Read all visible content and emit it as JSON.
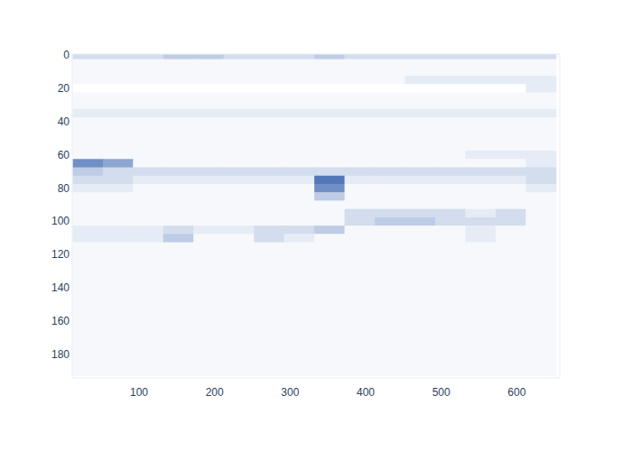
{
  "chart_data": {
    "type": "heatmap",
    "xlim": [
      11.5,
      657
    ],
    "ylim": [
      194,
      -0.5
    ],
    "xticks": [
      100,
      200,
      300,
      400,
      500,
      600
    ],
    "yticks": [
      0,
      20,
      40,
      60,
      80,
      100,
      120,
      140,
      160,
      180
    ],
    "zlim": [
      0,
      10
    ],
    "x": [
      32,
      72,
      112,
      152,
      192,
      232,
      272,
      312,
      352,
      392,
      432,
      472,
      512,
      552,
      592,
      632
    ],
    "y": [
      0,
      5,
      10,
      15,
      20,
      25,
      30,
      35,
      40,
      45,
      50,
      55,
      60,
      65,
      70,
      75,
      80,
      85,
      90,
      95,
      100,
      105,
      110,
      115,
      120,
      125,
      130,
      135,
      140,
      145,
      150,
      155,
      160,
      165,
      170,
      175,
      180,
      185,
      190
    ],
    "z": [
      [
        3,
        3,
        3,
        4,
        4,
        3,
        3,
        3,
        4,
        3,
        3,
        3,
        3,
        3,
        3,
        3
      ],
      [
        1,
        1,
        1,
        1,
        1,
        1,
        1,
        1,
        1,
        1,
        1,
        1,
        1,
        1,
        1,
        1
      ],
      [
        1,
        1,
        1,
        1,
        1,
        1,
        1,
        1,
        1,
        1,
        1,
        1,
        1,
        1,
        1,
        1
      ],
      [
        1,
        1,
        1,
        1,
        1,
        1,
        1,
        1,
        1,
        1,
        1,
        2,
        2,
        2,
        2,
        2
      ],
      [
        0,
        0,
        0,
        0,
        0,
        0,
        0,
        0,
        0,
        0,
        0,
        0,
        0,
        0,
        0,
        2
      ],
      [
        1,
        1,
        1,
        1,
        1,
        1,
        1,
        1,
        1,
        1,
        1,
        1,
        1,
        1,
        1,
        1
      ],
      [
        1,
        1,
        1,
        1,
        1,
        1,
        1,
        1,
        1,
        1,
        1,
        1,
        1,
        1,
        1,
        1
      ],
      [
        2,
        2,
        2,
        2,
        2,
        2,
        2,
        2,
        2,
        2,
        2,
        2,
        2,
        2,
        2,
        2
      ],
      [
        1,
        1,
        1,
        1,
        1,
        1,
        1,
        1,
        1,
        1,
        1,
        1,
        1,
        1,
        1,
        1
      ],
      [
        1,
        1,
        1,
        1,
        1,
        1,
        1,
        1,
        1,
        1,
        1,
        1,
        1,
        1,
        1,
        1
      ],
      [
        1,
        1,
        1,
        1,
        1,
        1,
        1,
        1,
        1,
        1,
        1,
        1,
        1,
        1,
        1,
        1
      ],
      [
        1,
        1,
        1,
        1,
        1,
        1,
        1,
        1,
        1,
        1,
        1,
        1,
        1,
        1,
        1,
        1
      ],
      [
        1,
        1,
        1,
        1,
        1,
        1,
        1,
        1,
        1,
        1,
        1,
        1,
        1,
        2,
        2,
        2
      ],
      [
        7,
        6,
        1,
        1,
        1,
        1,
        1,
        1,
        1,
        1,
        1,
        1,
        1,
        1,
        1,
        2
      ],
      [
        4,
        3,
        3,
        3,
        3,
        3,
        3,
        3,
        3,
        3,
        3,
        3,
        3,
        3,
        3,
        3
      ],
      [
        3,
        3,
        2,
        2,
        2,
        2,
        2,
        2,
        8,
        2,
        2,
        2,
        2,
        2,
        2,
        3
      ],
      [
        2,
        2,
        1,
        1,
        1,
        1,
        1,
        1,
        7,
        1,
        1,
        1,
        1,
        1,
        1,
        2
      ],
      [
        1,
        1,
        1,
        1,
        1,
        1,
        1,
        1,
        4,
        1,
        1,
        1,
        1,
        1,
        1,
        1
      ],
      [
        1,
        1,
        1,
        1,
        1,
        1,
        1,
        1,
        1,
        1,
        1,
        1,
        1,
        1,
        1,
        1
      ],
      [
        1,
        1,
        1,
        1,
        1,
        1,
        1,
        1,
        1,
        3,
        3,
        3,
        3,
        2,
        3,
        1
      ],
      [
        1,
        1,
        1,
        1,
        1,
        1,
        1,
        1,
        1,
        3,
        4,
        4,
        3,
        3,
        3,
        1
      ],
      [
        2,
        2,
        2,
        3,
        2,
        2,
        3,
        3,
        4,
        1,
        1,
        1,
        1,
        2,
        1,
        1
      ],
      [
        2,
        2,
        2,
        4,
        1,
        1,
        3,
        2,
        1,
        1,
        1,
        1,
        1,
        2,
        1,
        1
      ],
      [
        1,
        1,
        1,
        1,
        1,
        1,
        1,
        1,
        1,
        1,
        1,
        1,
        1,
        1,
        1,
        1
      ],
      [
        1,
        1,
        1,
        1,
        1,
        1,
        1,
        1,
        1,
        1,
        1,
        1,
        1,
        1,
        1,
        1
      ],
      [
        1,
        1,
        1,
        1,
        1,
        1,
        1,
        1,
        1,
        1,
        1,
        1,
        1,
        1,
        1,
        1
      ],
      [
        1,
        1,
        1,
        1,
        1,
        1,
        1,
        1,
        1,
        1,
        1,
        1,
        1,
        1,
        1,
        1
      ],
      [
        1,
        1,
        1,
        1,
        1,
        1,
        1,
        1,
        1,
        1,
        1,
        1,
        1,
        1,
        1,
        1
      ],
      [
        1,
        1,
        1,
        1,
        1,
        1,
        1,
        1,
        1,
        1,
        1,
        1,
        1,
        1,
        1,
        1
      ],
      [
        1,
        1,
        1,
        1,
        1,
        1,
        1,
        1,
        1,
        1,
        1,
        1,
        1,
        1,
        1,
        1
      ],
      [
        1,
        1,
        1,
        1,
        1,
        1,
        1,
        1,
        1,
        1,
        1,
        1,
        1,
        1,
        1,
        1
      ],
      [
        1,
        1,
        1,
        1,
        1,
        1,
        1,
        1,
        1,
        1,
        1,
        1,
        1,
        1,
        1,
        1
      ],
      [
        1,
        1,
        1,
        1,
        1,
        1,
        1,
        1,
        1,
        1,
        1,
        1,
        1,
        1,
        1,
        1
      ],
      [
        1,
        1,
        1,
        1,
        1,
        1,
        1,
        1,
        1,
        1,
        1,
        1,
        1,
        1,
        1,
        1
      ],
      [
        1,
        1,
        1,
        1,
        1,
        1,
        1,
        1,
        1,
        1,
        1,
        1,
        1,
        1,
        1,
        1
      ],
      [
        1,
        1,
        1,
        1,
        1,
        1,
        1,
        1,
        1,
        1,
        1,
        1,
        1,
        1,
        1,
        1
      ],
      [
        1,
        1,
        1,
        1,
        1,
        1,
        1,
        1,
        1,
        1,
        1,
        1,
        1,
        1,
        1,
        1
      ],
      [
        1,
        1,
        1,
        1,
        1,
        1,
        1,
        1,
        1,
        1,
        1,
        1,
        1,
        1,
        1,
        1
      ],
      [
        1,
        1,
        1,
        1,
        1,
        1,
        1,
        1,
        1,
        1,
        1,
        1,
        1,
        1,
        1,
        1
      ]
    ]
  }
}
